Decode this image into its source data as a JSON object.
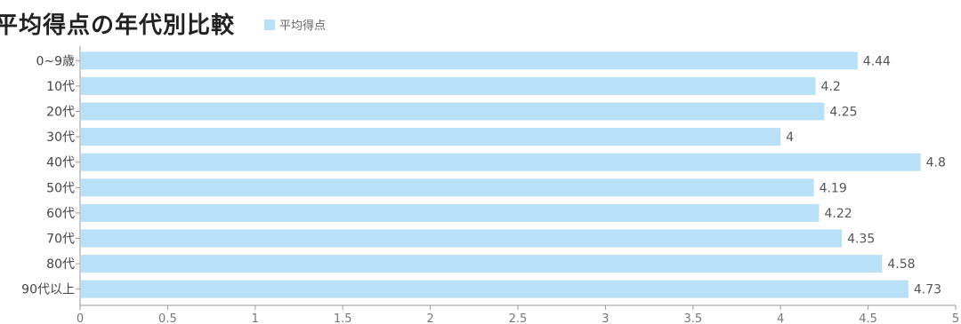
{
  "chart_data": {
    "type": "bar",
    "orientation": "horizontal",
    "title": "平均得点の年代別比較",
    "categories": [
      "0~9歳",
      "10代",
      "20代",
      "30代",
      "40代",
      "50代",
      "60代",
      "70代",
      "80代",
      "90代以上"
    ],
    "series": [
      {
        "name": "平均得点",
        "values": [
          4.44,
          4.2,
          4.25,
          4,
          4.8,
          4.19,
          4.22,
          4.35,
          4.58,
          4.73
        ]
      }
    ],
    "xlim": [
      0,
      5
    ],
    "xticks": [
      "0",
      "0.5",
      "1",
      "1.5",
      "2",
      "2.5",
      "3",
      "3.5",
      "4",
      "4.5",
      "5"
    ],
    "value_labels": [
      "4.44",
      "4.2",
      "4.25",
      "4",
      "4.8",
      "4.19",
      "4.22",
      "4.35",
      "4.58",
      "4.73"
    ],
    "grid": false,
    "legend": "top",
    "bar_color": "#b8e0f6",
    "axis_color": "#999999"
  }
}
